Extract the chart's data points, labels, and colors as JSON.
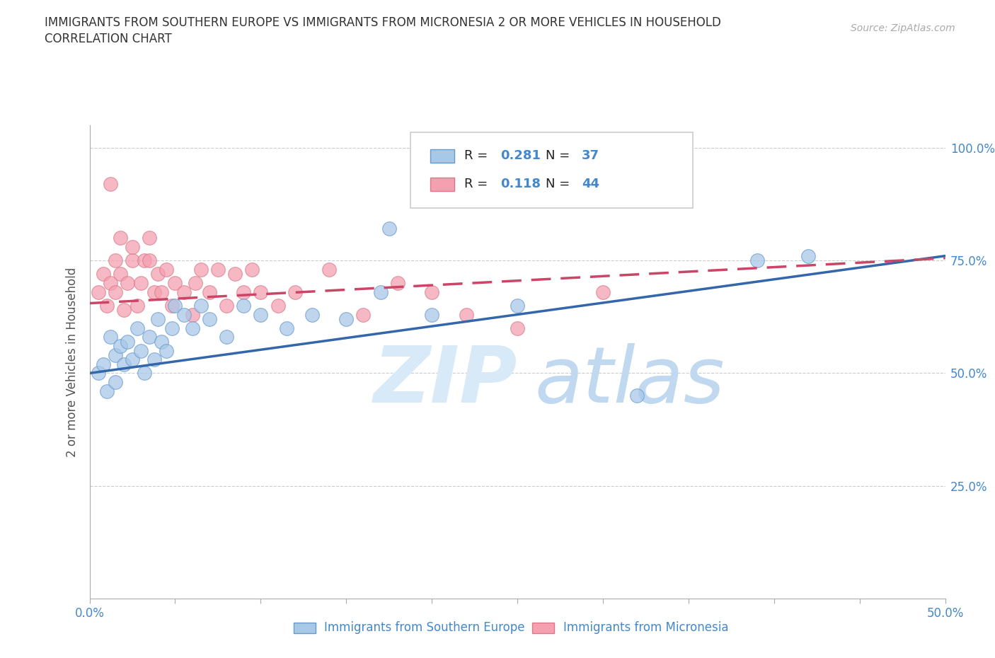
{
  "title_line1": "IMMIGRANTS FROM SOUTHERN EUROPE VS IMMIGRANTS FROM MICRONESIA 2 OR MORE VEHICLES IN HOUSEHOLD",
  "title_line2": "CORRELATION CHART",
  "source": "Source: ZipAtlas.com",
  "ylabel": "2 or more Vehicles in Household",
  "xmin": 0.0,
  "xmax": 0.5,
  "ymin": 0.0,
  "ymax": 1.05,
  "yticks": [
    0.0,
    0.25,
    0.5,
    0.75,
    1.0
  ],
  "ytick_labels": [
    "",
    "25.0%",
    "50.0%",
    "75.0%",
    "100.0%"
  ],
  "xticks": [
    0.0,
    0.05,
    0.1,
    0.15,
    0.2,
    0.25,
    0.3,
    0.35,
    0.4,
    0.45,
    0.5
  ],
  "xtick_labels": [
    "0.0%",
    "",
    "",
    "",
    "",
    "",
    "",
    "",
    "",
    "",
    "50.0%"
  ],
  "blue_color": "#a8c8e8",
  "pink_color": "#f4a0b0",
  "blue_edge_color": "#6699cc",
  "pink_edge_color": "#dd7788",
  "blue_line_color": "#3366aa",
  "pink_line_color": "#cc4466",
  "R_blue": 0.281,
  "N_blue": 37,
  "R_pink": 0.118,
  "N_pink": 44,
  "legend_label_blue": "Immigrants from Southern Europe",
  "legend_label_pink": "Immigrants from Micronesia",
  "blue_x": [
    0.005,
    0.008,
    0.01,
    0.012,
    0.015,
    0.015,
    0.018,
    0.02,
    0.022,
    0.025,
    0.028,
    0.03,
    0.032,
    0.035,
    0.038,
    0.04,
    0.042,
    0.045,
    0.048,
    0.05,
    0.055,
    0.06,
    0.065,
    0.07,
    0.08,
    0.09,
    0.1,
    0.115,
    0.13,
    0.15,
    0.17,
    0.2,
    0.25,
    0.32,
    0.42,
    0.175,
    0.39
  ],
  "blue_y": [
    0.5,
    0.52,
    0.46,
    0.58,
    0.54,
    0.48,
    0.56,
    0.52,
    0.57,
    0.53,
    0.6,
    0.55,
    0.5,
    0.58,
    0.53,
    0.62,
    0.57,
    0.55,
    0.6,
    0.65,
    0.63,
    0.6,
    0.65,
    0.62,
    0.58,
    0.65,
    0.63,
    0.6,
    0.63,
    0.62,
    0.68,
    0.63,
    0.65,
    0.45,
    0.76,
    0.82,
    0.75
  ],
  "pink_x": [
    0.005,
    0.008,
    0.01,
    0.012,
    0.015,
    0.015,
    0.018,
    0.02,
    0.022,
    0.025,
    0.028,
    0.03,
    0.032,
    0.035,
    0.038,
    0.04,
    0.042,
    0.045,
    0.048,
    0.05,
    0.055,
    0.06,
    0.062,
    0.065,
    0.07,
    0.075,
    0.08,
    0.085,
    0.09,
    0.095,
    0.1,
    0.11,
    0.12,
    0.14,
    0.16,
    0.18,
    0.2,
    0.22,
    0.25,
    0.3,
    0.012,
    0.018,
    0.025,
    0.035
  ],
  "pink_y": [
    0.68,
    0.72,
    0.65,
    0.7,
    0.75,
    0.68,
    0.72,
    0.64,
    0.7,
    0.75,
    0.65,
    0.7,
    0.75,
    0.8,
    0.68,
    0.72,
    0.68,
    0.73,
    0.65,
    0.7,
    0.68,
    0.63,
    0.7,
    0.73,
    0.68,
    0.73,
    0.65,
    0.72,
    0.68,
    0.73,
    0.68,
    0.65,
    0.68,
    0.73,
    0.63,
    0.7,
    0.68,
    0.63,
    0.6,
    0.68,
    0.92,
    0.8,
    0.78,
    0.75
  ]
}
